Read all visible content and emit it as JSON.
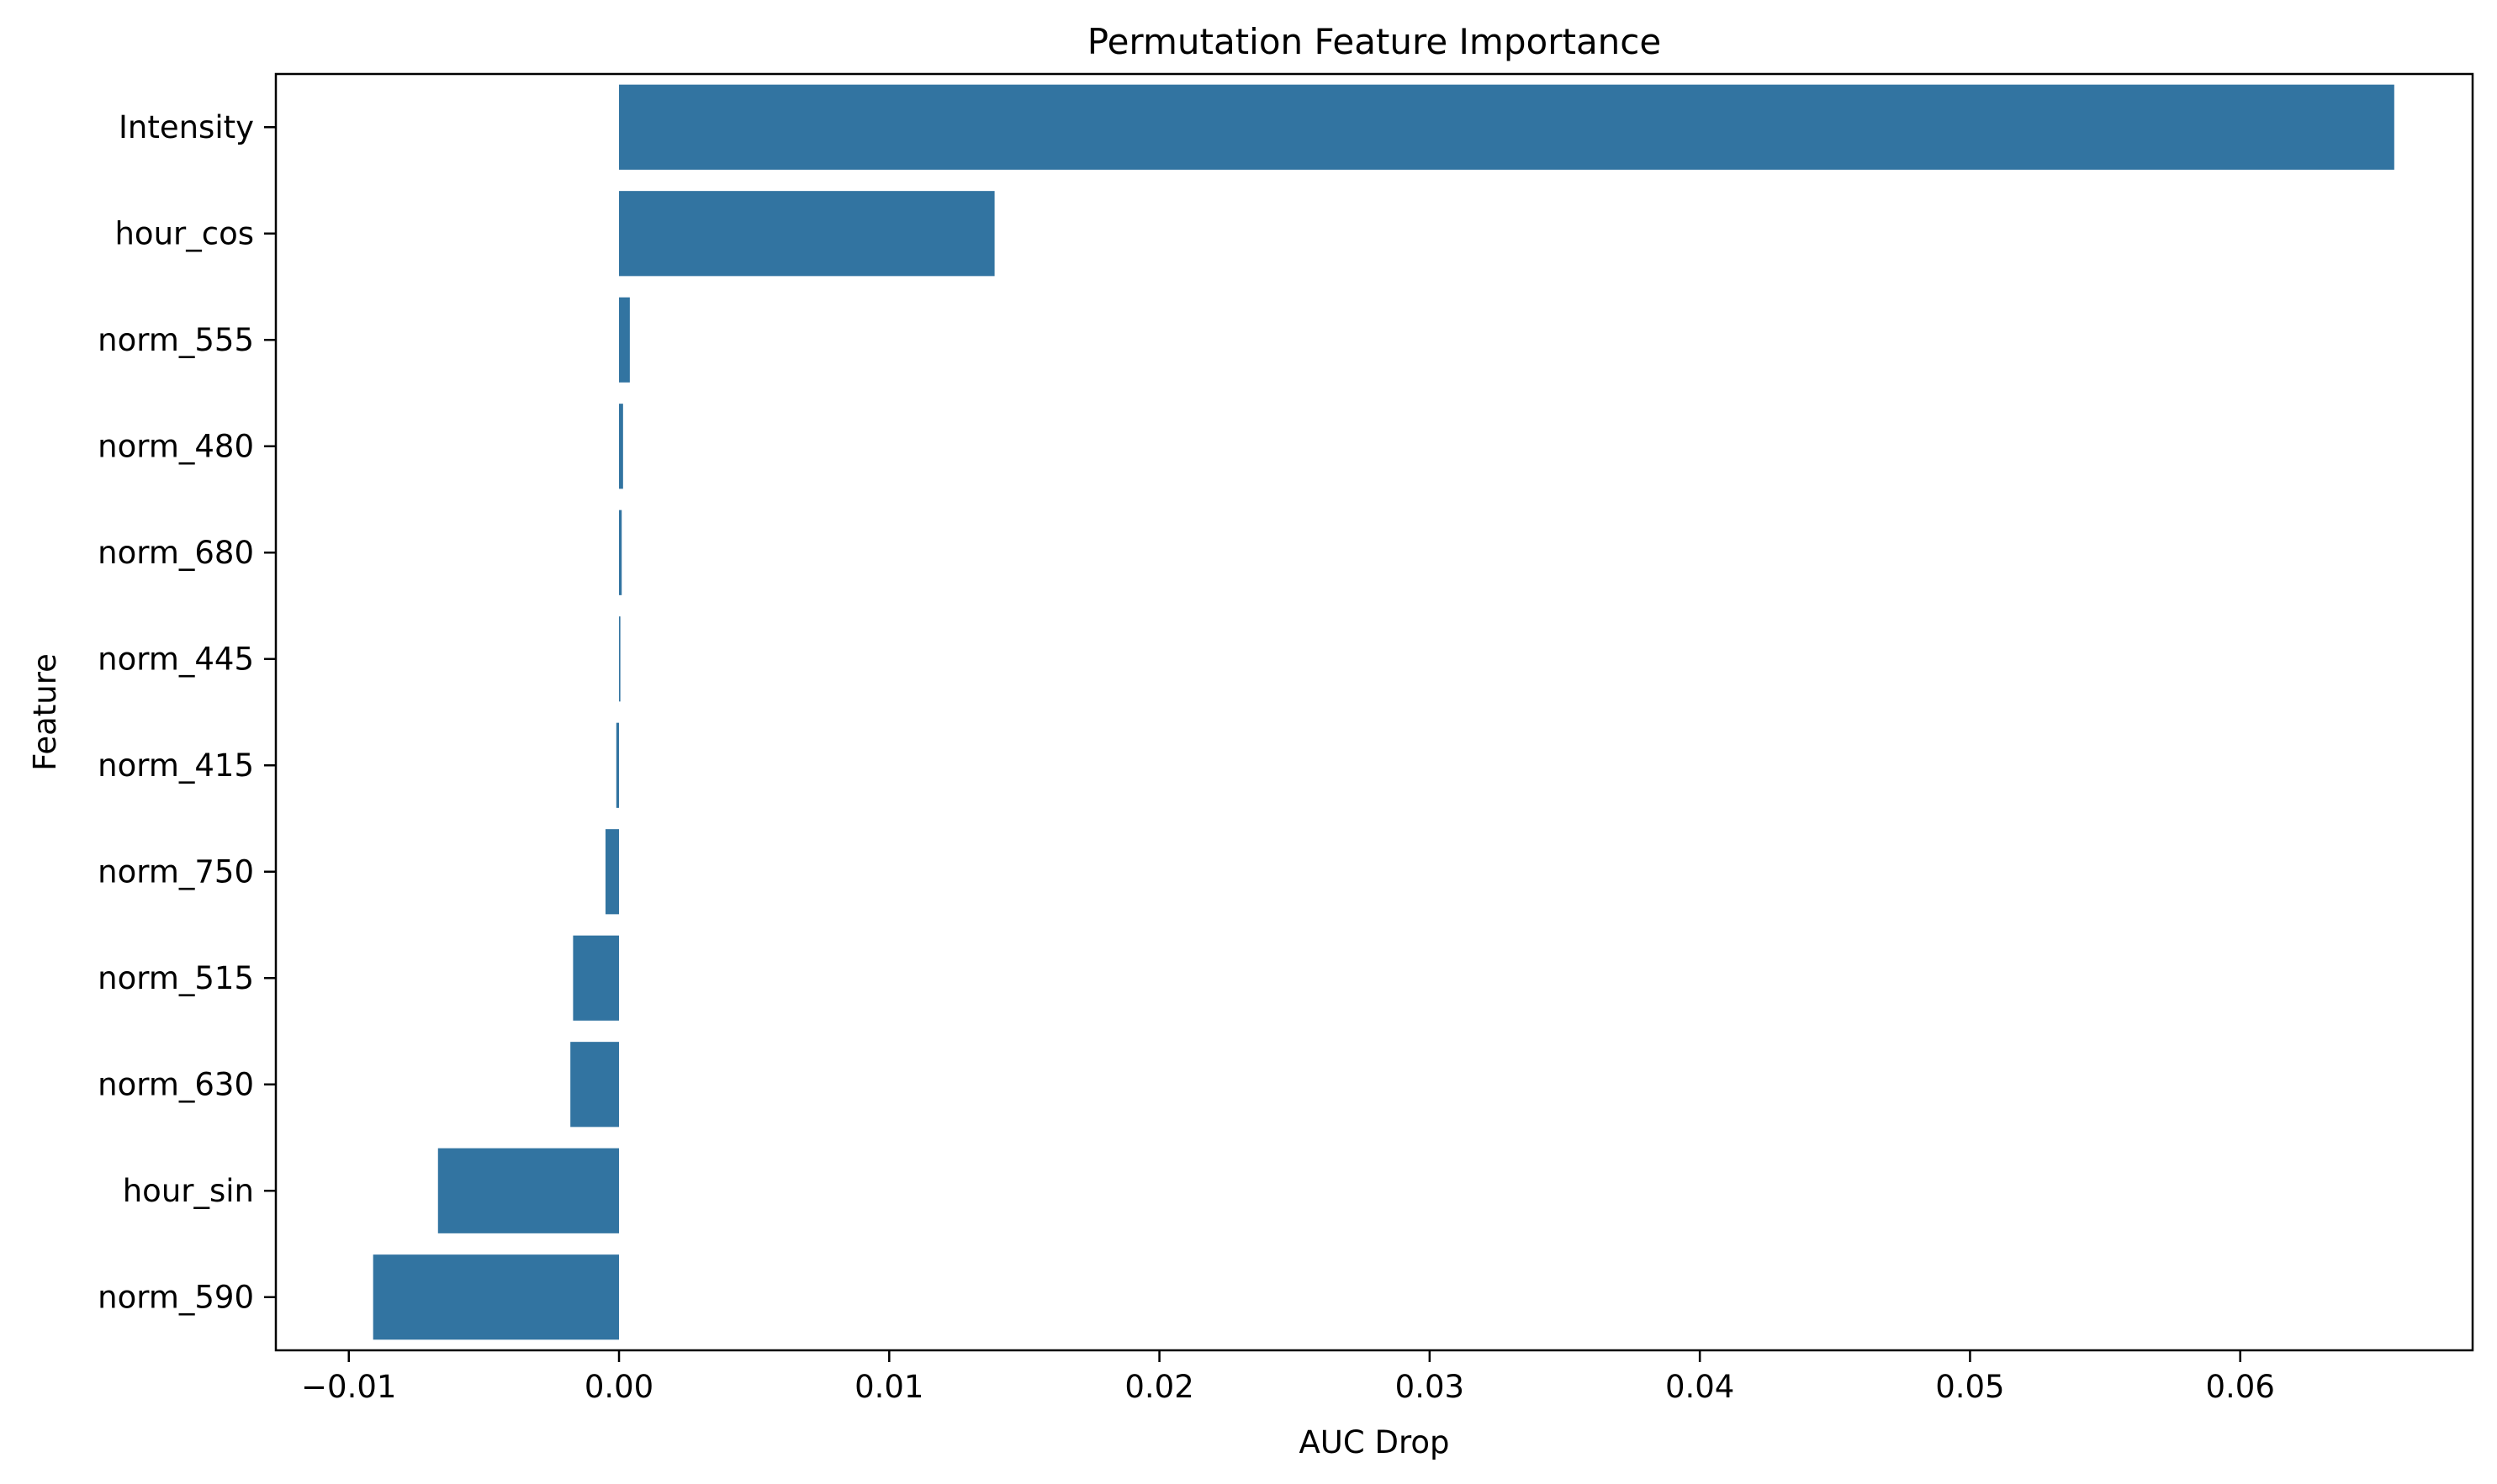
{
  "chart_data": {
    "type": "bar",
    "orientation": "horizontal",
    "title": "Permutation Feature Importance",
    "xlabel": "AUC Drop",
    "ylabel": "Feature",
    "xlim": [
      -0.0127,
      0.0686
    ],
    "x_ticks": [
      -0.01,
      0.0,
      0.01,
      0.02,
      0.03,
      0.04,
      0.05,
      0.06
    ],
    "x_tick_labels": [
      "−0.01",
      "0.00",
      "0.01",
      "0.02",
      "0.03",
      "0.04",
      "0.05",
      "0.06"
    ],
    "categories": [
      "Intensity",
      "hour_cos",
      "norm_555",
      "norm_480",
      "norm_680",
      "norm_445",
      "norm_415",
      "norm_750",
      "norm_515",
      "norm_630",
      "hour_sin",
      "norm_590"
    ],
    "values": [
      0.0657,
      0.0139,
      0.0004,
      0.00015,
      0.0001,
      5e-05,
      -0.0001,
      -0.0005,
      -0.0017,
      -0.0018,
      -0.0067,
      -0.0091
    ],
    "bar_color": "#3274a1",
    "grid": false,
    "legend": "none"
  }
}
